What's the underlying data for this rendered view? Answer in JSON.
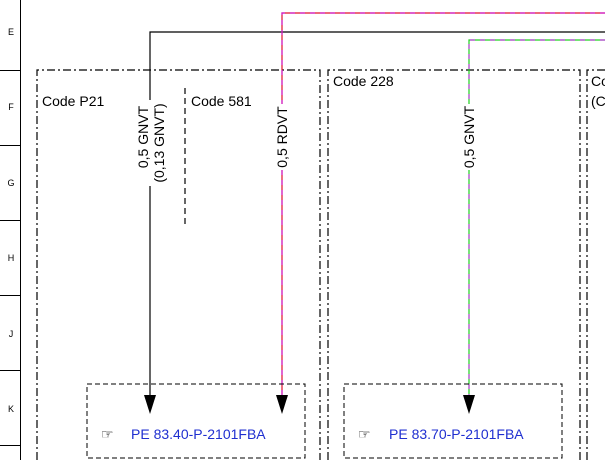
{
  "rows": [
    "E",
    "F",
    "G",
    "H",
    "J",
    "K"
  ],
  "zones": [
    "Code P21",
    "Code 581",
    "Code 228",
    "Co",
    "(C"
  ],
  "wires": [
    {
      "label": "0,5 GNVT",
      "sublabel": "(0,13 GNVT)"
    },
    {
      "label": "0,5 RDVT"
    },
    {
      "label": "0,5 GNVT"
    }
  ],
  "links": [
    "PE 83.40-P-2101FBA",
    "PE 83.70-P-2101FBA"
  ]
}
